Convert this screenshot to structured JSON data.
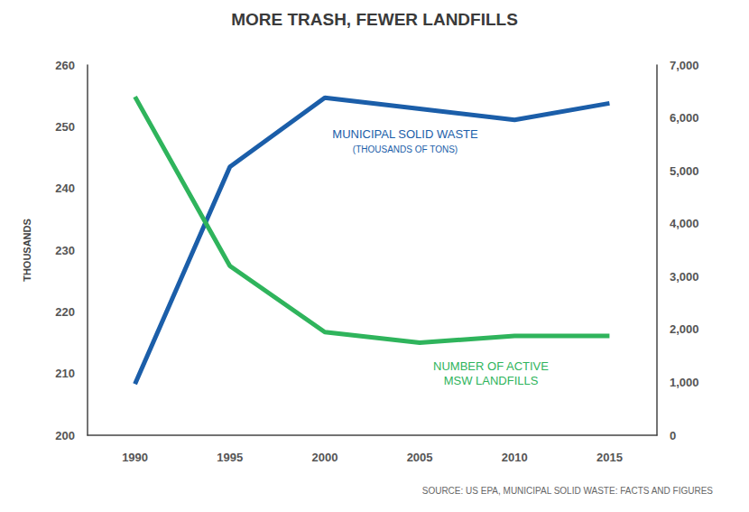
{
  "chart_data": {
    "type": "line",
    "title": "MORE TRASH, FEWER LANDFILLS",
    "y_label": "THOUSANDS",
    "categories": [
      "1990",
      "1995",
      "2000",
      "2005",
      "2010",
      "2015"
    ],
    "series": [
      {
        "name": "MUNICIPAL SOLID WASTE",
        "color": "#1b5ea9",
        "axis": "y",
        "values": [
          208.3,
          243.5,
          254.7,
          252.9,
          251.1,
          253.8
        ]
      },
      {
        "name": "NUMBER OF ACTIVE\nMSW LANDFILLS",
        "color": "#2fb45c",
        "axis": "y2",
        "values": [
          6400,
          3200,
          1950,
          1750,
          1880,
          1880
        ]
      }
    ],
    "annotations": [
      "(THOUSANDS OF TONS)"
    ],
    "source": "SOURCE: US EPA, MUNICIPAL SOLID WASTE: FACTS AND FIGURES",
    "ylim": [
      200,
      260
    ],
    "yticks": [
      200,
      210,
      220,
      230,
      240,
      250,
      260
    ],
    "y2lim": [
      0,
      7000
    ],
    "y2ticks": [
      0,
      {
        "value": 1000,
        "label": "1,000"
      },
      {
        "value": 2000,
        "label": "2,000"
      },
      {
        "value": 3000,
        "label": "3,000"
      },
      {
        "value": 4000,
        "label": "4,000"
      },
      {
        "value": 5000,
        "label": "5,000"
      },
      {
        "value": 6000,
        "label": "6,000"
      },
      {
        "value": 7000,
        "label": "7,000"
      }
    ],
    "grid": false
  }
}
